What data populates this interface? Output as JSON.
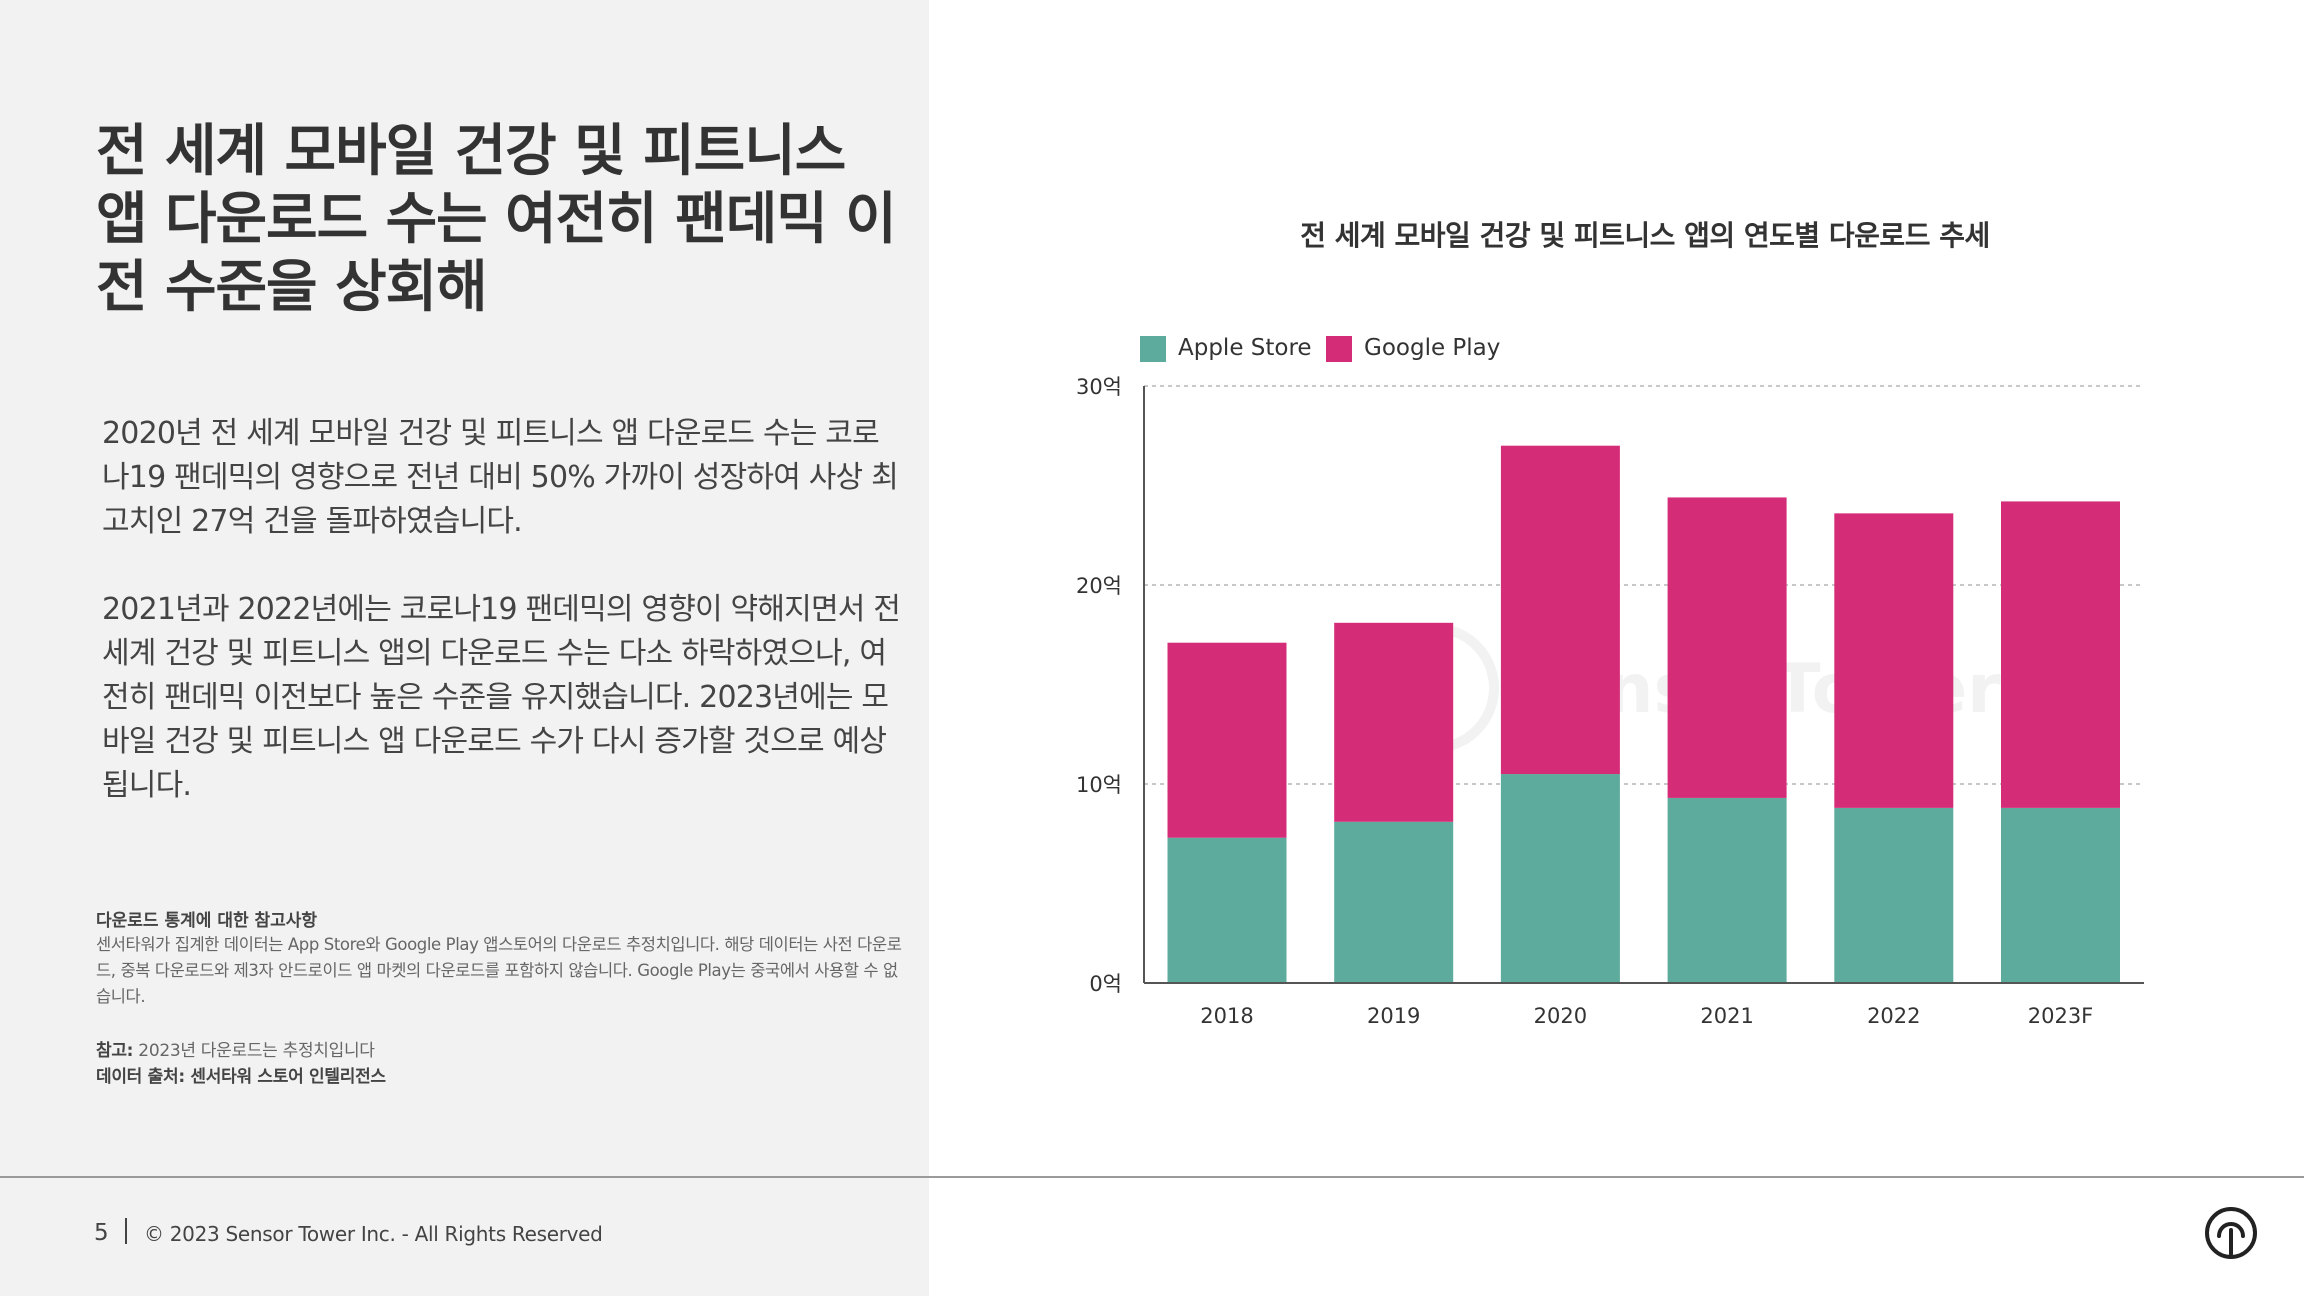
{
  "headline": "전 세계 모바일 건강 및 피트니스 앱 다운로드 수는 여전히 팬데믹 이전 수준을 상회해",
  "paragraph_1": "2020년 전 세계 모바일 건강 및 피트니스 앱 다운로드 수는 코로나19 팬데믹의 영향으로 전년 대비 50% 가까이 성장하여 사상 최고치인 27억 건을 돌파하였습니다.",
  "paragraph_2": "2021년과 2022년에는 코로나19 팬데믹의 영향이 약해지면서 전 세계 건강 및 피트니스 앱의 다운로드 수는 다소 하락하였으나, 여전히 팬데믹 이전보다 높은 수준을 유지했습니다. 2023년에는 모바일 건강 및 피트니스 앱 다운로드 수가 다시 증가할 것으로 예상됩니다.",
  "notes": {
    "title": "다운로드 통계에 대한 참고사항",
    "text": "센서타워가 집계한 데이터는 App Store와 Google Play 앱스토어의 다운로드 추정치입니다. 해당 데이터는 사전 다운로드, 중복 다운로드와 제3자 안드로이드 앱 마켓의 다운로드를 포함하지 않습니다. Google Play는 중국에서 사용할 수 없습니다.",
    "ref_label": "참고:",
    "ref_text": "2023년 다운로드는 추정치입니다",
    "source": "데이터 출처: 센서타워 스토어 인텔리전스"
  },
  "footer": {
    "page_number": "5",
    "copyright": "© 2023 Sensor Tower Inc. - All Rights Reserved",
    "logo_icon": "sensor-tower-logo-icon"
  },
  "watermark": "SensorTower",
  "colors": {
    "apple": "#5dab9c",
    "google": "#d52c78",
    "left_panel": "#f2f2f2",
    "text": "#333333"
  },
  "chart_data": {
    "type": "bar",
    "stacked": true,
    "title": "전 세계 모바일 건강 및 피트니스 앱의 연도별 다운로드 추세",
    "categories": [
      "2018",
      "2019",
      "2020",
      "2021",
      "2022",
      "2023F"
    ],
    "series": [
      {
        "name": "Apple Store",
        "color": "#5dab9c",
        "values": [
          7.3,
          8.1,
          10.5,
          9.3,
          8.8,
          8.8
        ]
      },
      {
        "name": "Google Play",
        "color": "#d52c78",
        "values": [
          9.8,
          10.0,
          16.5,
          15.1,
          14.8,
          15.4
        ]
      }
    ],
    "ylim": [
      0,
      30
    ],
    "yticks": [
      0,
      10,
      20,
      30
    ],
    "ytick_labels": [
      "0억",
      "10억",
      "20억",
      "30억"
    ],
    "xlabel": "",
    "ylabel": "",
    "legend_position": "top-left",
    "grid": "horizontal-dashed"
  }
}
